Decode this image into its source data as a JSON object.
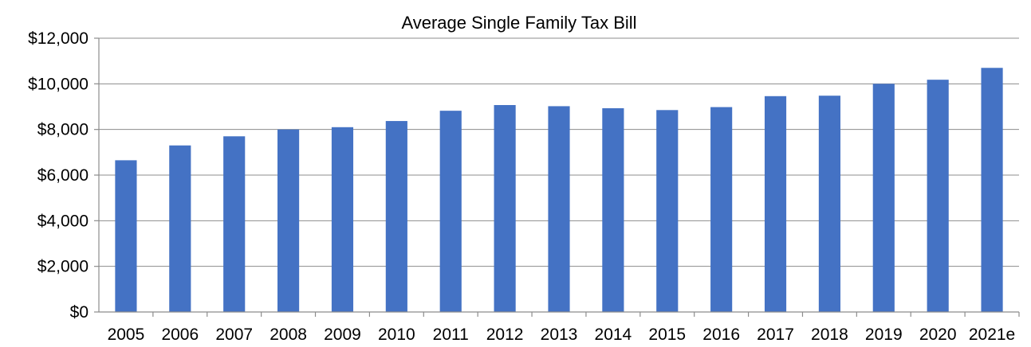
{
  "chart_data": {
    "type": "bar",
    "title": "Average Single Family Tax Bill",
    "xlabel": "",
    "ylabel": "",
    "categories": [
      "2005",
      "2006",
      "2007",
      "2008",
      "2009",
      "2010",
      "2011",
      "2012",
      "2013",
      "2014",
      "2015",
      "2016",
      "2017",
      "2018",
      "2019",
      "2020",
      "2021e"
    ],
    "series": [
      {
        "values": [
          6650,
          7300,
          7700,
          8000,
          8100,
          8370,
          8820,
          9070,
          9020,
          8930,
          8850,
          8980,
          9460,
          9480,
          10000,
          10180,
          10700
        ]
      }
    ],
    "ylim": [
      0,
      12000
    ],
    "yticks": [
      0,
      2000,
      4000,
      6000,
      8000,
      10000,
      12000
    ],
    "ytick_labels": [
      "$0",
      "$2,000",
      "$4,000",
      "$6,000",
      "$8,000",
      "$10,000",
      "$12,000"
    ],
    "grid": true,
    "legend": "none",
    "bar_color": "#4472c4"
  }
}
